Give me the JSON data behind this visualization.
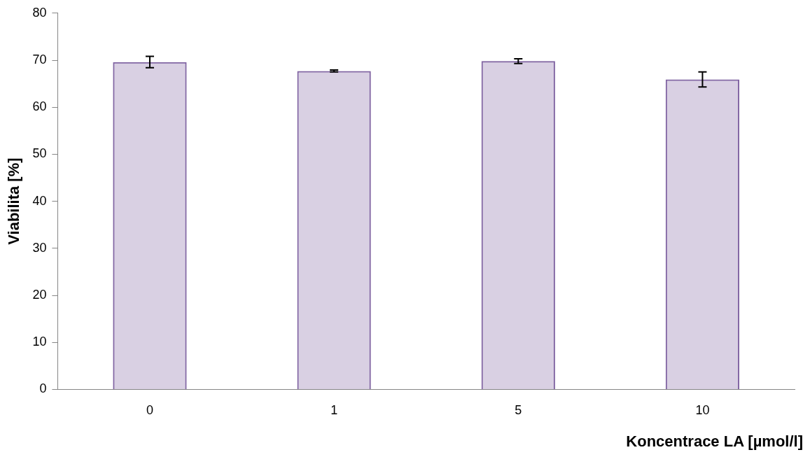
{
  "chart_data": {
    "type": "bar",
    "xlabel": "Koncentrace LA [µmol/l]",
    "ylabel": "Viabilita [%]",
    "categories": [
      "0",
      "1",
      "5",
      "10"
    ],
    "values": [
      69.6,
      67.7,
      69.8,
      65.9
    ],
    "errors": [
      1.2,
      0.2,
      0.5,
      1.6
    ],
    "color": "#8064a2",
    "ylim": [
      0,
      80
    ],
    "yticks": [
      0,
      10,
      20,
      30,
      40,
      50,
      60,
      70,
      80
    ],
    "grid": false,
    "legend": false
  }
}
